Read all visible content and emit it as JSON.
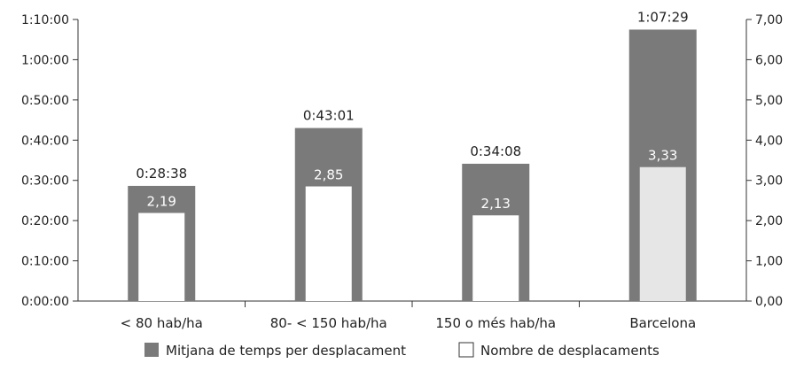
{
  "chart_data": {
    "type": "bar",
    "categories": [
      "< 80 hab/ha",
      "80- < 150 hab/ha",
      "150 o més hab/ha",
      "Barcelona"
    ],
    "series": [
      {
        "name": "Mitjana de temps per desplacament",
        "axis": "left",
        "values_seconds": [
          1718,
          2581,
          2048,
          4049
        ],
        "labels": [
          "0:28:38",
          "0:43:01",
          "0:34:08",
          "1:07:29"
        ]
      },
      {
        "name": "Nombre de desplacaments",
        "axis": "right",
        "values": [
          2.19,
          2.85,
          2.13,
          3.33
        ],
        "labels": [
          "2,19",
          "2,85",
          "2,13",
          "3,33"
        ]
      }
    ],
    "left_axis": {
      "ticks": [
        "0:00:00",
        "0:10:00",
        "0:20:00",
        "0:30:00",
        "0:40:00",
        "0:50:00",
        "1:00:00",
        "1:10:00"
      ],
      "range_seconds": [
        0,
        4200
      ]
    },
    "right_axis": {
      "ticks": [
        "0,00",
        "1,00",
        "2,00",
        "3,00",
        "4,00",
        "5,00",
        "6,00",
        "7,00"
      ],
      "range": [
        0,
        7
      ]
    },
    "legend_position": "bottom",
    "colors": {
      "time_bar": "#7a7a7a",
      "count_bar": "#ffffff",
      "count_bar_highlight": "#e6e6e6",
      "axis": "#333333",
      "value_label_light": "#ffffff",
      "value_label_dark": "#222222"
    }
  }
}
